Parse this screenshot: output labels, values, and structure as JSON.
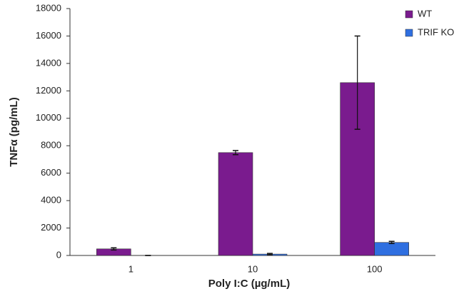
{
  "chart_data": {
    "type": "bar",
    "x_label": "Poly I:C (µg/mL)",
    "y_label": "TNFα (pg/mL)",
    "categories": [
      "1",
      "10",
      "100"
    ],
    "series": [
      {
        "name": "WT",
        "color": "#7a1b8e",
        "values": [
          480,
          7500,
          12600
        ],
        "errors": [
          80,
          150,
          3400
        ]
      },
      {
        "name": "TRIF KO",
        "color": "#2f6fe0",
        "values": [
          0,
          100,
          950
        ],
        "errors": [
          0,
          50,
          80
        ]
      }
    ],
    "ylim": [
      0,
      18000
    ],
    "yticks": [
      0,
      2000,
      4000,
      6000,
      8000,
      10000,
      12000,
      14000,
      16000,
      18000
    ],
    "grid": false,
    "legend": "top-right"
  }
}
